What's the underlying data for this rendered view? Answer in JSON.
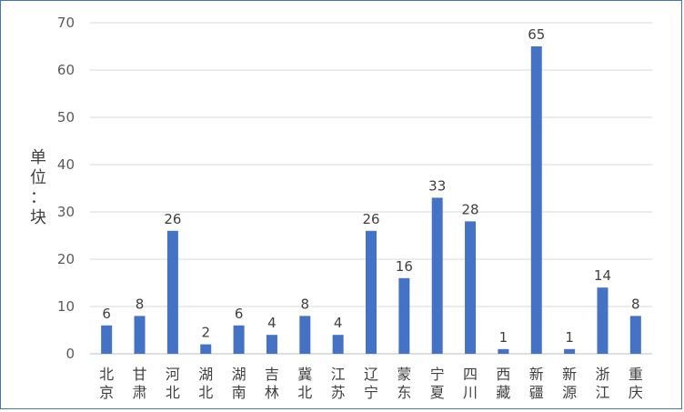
{
  "chart_data": {
    "type": "bar",
    "title": "",
    "xlabel": "",
    "ylabel": "单位：块",
    "ylim": [
      0,
      70
    ],
    "y_ticks": [
      0,
      10,
      20,
      30,
      40,
      50,
      60,
      70
    ],
    "grid": true,
    "legend": "none",
    "bar_color": "#4472c4",
    "categories": [
      "北京",
      "甘肃",
      "河北",
      "湖北",
      "湖南",
      "吉林",
      "冀北",
      "江苏",
      "辽宁",
      "蒙东",
      "宁夏",
      "四川",
      "西藏",
      "新疆",
      "新源",
      "浙江",
      "重庆"
    ],
    "values": [
      6,
      8,
      26,
      2,
      6,
      4,
      8,
      4,
      26,
      16,
      33,
      28,
      1,
      65,
      1,
      14,
      8
    ]
  }
}
